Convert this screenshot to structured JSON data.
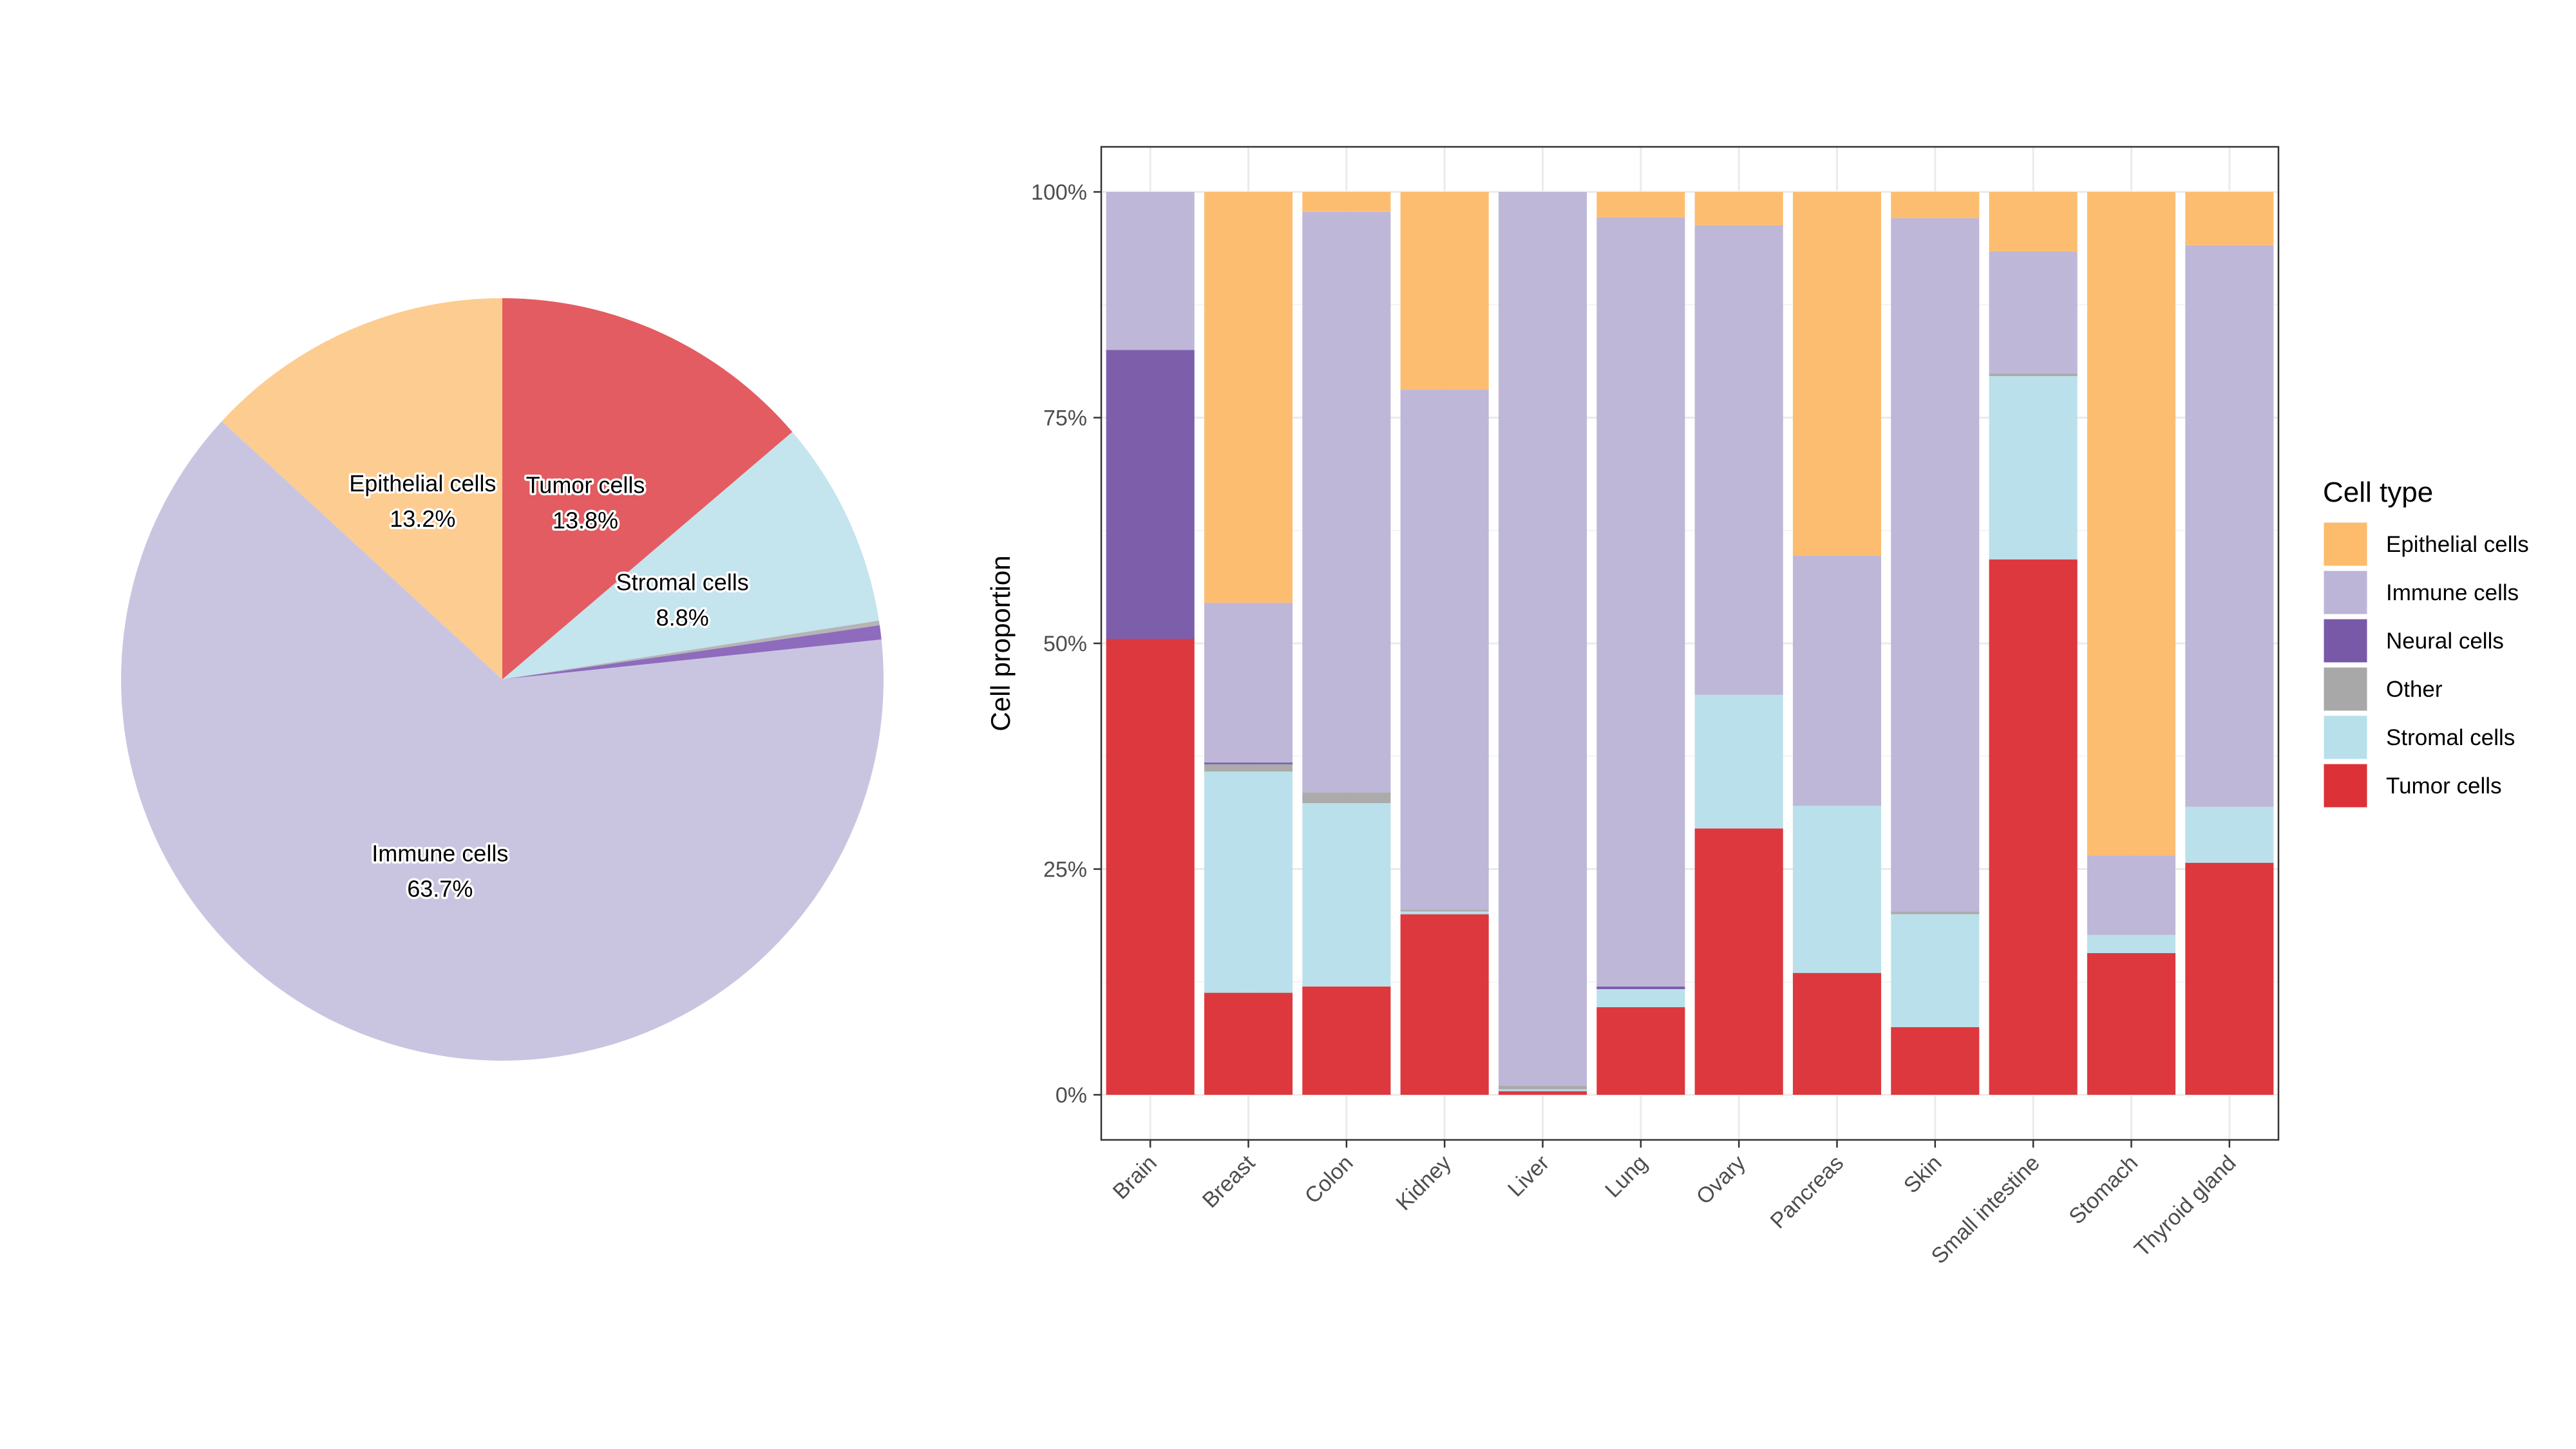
{
  "chart_data": [
    {
      "type": "pie",
      "slices": [
        {
          "label": "Tumor cells",
          "value": 13.8,
          "text": "13.8%",
          "show_label": true
        },
        {
          "label": "Stromal cells",
          "value": 8.8,
          "text": "8.8%",
          "show_label": true
        },
        {
          "label": "Other",
          "value": 0.2,
          "text": "",
          "show_label": false
        },
        {
          "label": "Neural cells",
          "value": 0.6,
          "text": "",
          "show_label": false
        },
        {
          "label": "Immune cells",
          "value": 63.7,
          "text": "63.7%",
          "show_label": true
        },
        {
          "label": "Epithelial cells",
          "value": 13.2,
          "text": "13.2%",
          "show_label": true
        }
      ]
    },
    {
      "type": "bar",
      "stacked": true,
      "ylabel": "Cell proportion",
      "ylim": [
        0,
        1
      ],
      "yticks": [
        0,
        0.25,
        0.5,
        0.75,
        1
      ],
      "ytick_labels": [
        "0%",
        "25%",
        "50%",
        "75%",
        "100%"
      ],
      "grid": true,
      "legend_position": "right",
      "categories": [
        "Brain",
        "Breast",
        "Colon",
        "Kidney",
        "Liver",
        "Lung",
        "Ovary",
        "Pancreas",
        "Skin",
        "Small intestine",
        "Stomach",
        "Thyroid gland"
      ],
      "stack_order": [
        "Tumor cells",
        "Stromal cells",
        "Other",
        "Neural cells",
        "Immune cells",
        "Epithelial cells"
      ],
      "series": [
        {
          "name": "Tumor cells",
          "values": [
            0.505,
            0.113,
            0.12,
            0.2,
            0.004,
            0.097,
            0.295,
            0.135,
            0.075,
            0.593,
            0.157,
            0.257
          ]
        },
        {
          "name": "Stromal cells",
          "values": [
            0,
            0.245,
            0.203,
            0.003,
            0.002,
            0.02,
            0.148,
            0.185,
            0.125,
            0.203,
            0.02,
            0.062
          ]
        },
        {
          "name": "Other",
          "values": [
            0,
            0.008,
            0.012,
            0.002,
            0.004,
            0,
            0,
            0,
            0.003,
            0.003,
            0,
            0
          ]
        },
        {
          "name": "Neural cells",
          "values": [
            0.32,
            0.002,
            0,
            0,
            0,
            0.003,
            0,
            0,
            0,
            0,
            0,
            0
          ]
        },
        {
          "name": "Immune cells",
          "values": [
            0.175,
            0.177,
            0.643,
            0.576,
            0.99,
            0.852,
            0.52,
            0.277,
            0.768,
            0.135,
            0.088,
            0.622
          ]
        },
        {
          "name": "Epithelial cells",
          "values": [
            0,
            0.455,
            0.022,
            0.219,
            0,
            0.028,
            0.037,
            0.403,
            0.029,
            0.066,
            0.735,
            0.059
          ]
        }
      ]
    }
  ],
  "legend": {
    "title": "Cell type",
    "items": [
      "Epithelial cells",
      "Immune cells",
      "Neural cells",
      "Other",
      "Stromal cells",
      "Tumor cells"
    ]
  },
  "colors": {
    "Epithelial cells": "#fdbb6c",
    "Immune cells": "#bcb5d7",
    "Neural cells": "#7859a8",
    "Other": "#a8a8a8",
    "Stromal cells": "#b8e0ea",
    "Tumor cells": "#dc3237"
  },
  "pie_colors": {
    "Epithelial cells": "#fdcc90",
    "Immune cells": "#c9c5e1",
    "Neural cells": "#8e6bbd",
    "Other": "#b5b5b5",
    "Stromal cells": "#c4e4ee",
    "Tumor cells": "#e35c61"
  }
}
